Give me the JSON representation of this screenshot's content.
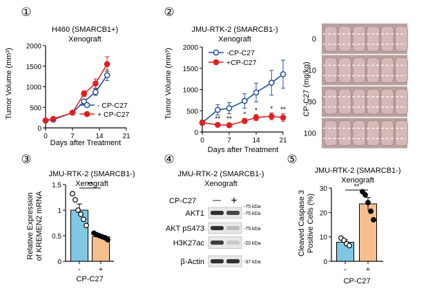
{
  "panel_numbers": [
    "①",
    "②",
    "③",
    "④",
    "⑤"
  ],
  "chart_data": [
    {
      "id": "panel1",
      "type": "line",
      "title": "H460 (SMARCB1+)",
      "subtitle": "Xenograft",
      "xlabel": "Days after Treatment",
      "ylabel": "Tumor Volume (mm³)",
      "xlim": [
        0,
        21
      ],
      "ylim": [
        0,
        2000
      ],
      "xticks": [
        0,
        7,
        14,
        21
      ],
      "yticks": [
        0,
        500,
        1000,
        1500,
        2000
      ],
      "x": [
        0,
        2,
        7,
        10,
        13,
        16
      ],
      "series": [
        {
          "name": "- CP-C27",
          "color": "#1f4e9e",
          "marker": "open-circle",
          "values": [
            180,
            200,
            370,
            640,
            870,
            1280
          ],
          "errors": [
            20,
            20,
            30,
            60,
            80,
            130
          ]
        },
        {
          "name": "+ CP-C27",
          "color": "#e02020",
          "marker": "filled-circle",
          "values": [
            180,
            220,
            370,
            830,
            1080,
            1550
          ],
          "errors": [
            20,
            20,
            30,
            70,
            110,
            180
          ]
        }
      ]
    },
    {
      "id": "panel2",
      "type": "line",
      "title": "JMU-RTK-2 (SMARCB1-)",
      "subtitle": "Xenograft",
      "xlabel": "Days after Treatment",
      "ylabel": "Tumor Volume (mm³)",
      "xlim": [
        0,
        21
      ],
      "ylim": [
        0,
        2000
      ],
      "xticks": [
        0,
        7,
        14,
        21
      ],
      "yticks": [
        0,
        500,
        1000,
        1500,
        2000
      ],
      "x": [
        0,
        4,
        7,
        11,
        14,
        18,
        21
      ],
      "series": [
        {
          "name": "-CP-C27",
          "color": "#1f4e9e",
          "marker": "open-circle",
          "values": [
            220,
            520,
            560,
            730,
            930,
            1160,
            1360
          ],
          "errors": [
            60,
            120,
            130,
            170,
            220,
            290,
            330
          ]
        },
        {
          "name": "+CP-C27",
          "color": "#e02020",
          "marker": "filled-circle",
          "values": [
            220,
            170,
            160,
            260,
            340,
            370,
            340
          ],
          "errors": [
            30,
            40,
            50,
            60,
            70,
            80,
            90
          ]
        }
      ],
      "significance": [
        {
          "x": 4,
          "label": "**"
        },
        {
          "x": 7,
          "label": "**"
        },
        {
          "x": 11,
          "label": "*"
        },
        {
          "x": 14,
          "label": "*"
        },
        {
          "x": 18,
          "label": "*"
        },
        {
          "x": 21,
          "label": "**"
        }
      ]
    },
    {
      "id": "panel3",
      "type": "bar",
      "title": "JMU-RTK-2 (SMARCB1-)",
      "subtitle": "Xenograft",
      "ylabel": "Relative Expression of KREMEN2 mRNA",
      "xlabel": "CP-C27",
      "categories": [
        "-",
        "+"
      ],
      "values": [
        1.0,
        0.48
      ],
      "errors": [
        0.12,
        0.04
      ],
      "colors": [
        "#7ec8e3",
        "#f6c08e"
      ],
      "points": [
        [
          1.32,
          1.2,
          1.0,
          0.92,
          0.82,
          0.7
        ],
        [
          0.55,
          0.52,
          0.5,
          0.48,
          0.46,
          0.42
        ]
      ],
      "ylim": [
        0,
        1.5
      ],
      "yticks": [
        0,
        0.5,
        1.0,
        1.5
      ],
      "significance": "**"
    },
    {
      "id": "panel5",
      "type": "bar",
      "title": "JMU-RTK-2 (SMARCB1-)",
      "subtitle": "Xenograft",
      "ylabel": "Cleaved Caspase 3 Positive Cells (%)",
      "xlabel": "CP-C27",
      "categories": [
        "-",
        "+"
      ],
      "values": [
        7.8,
        23.5
      ],
      "errors": [
        1.0,
        2.6
      ],
      "colors": [
        "#7ec8e3",
        "#f6c08e"
      ],
      "points": [
        [
          9.5,
          8.6,
          7.2,
          6.4
        ],
        [
          28.5,
          27.2,
          24.0,
          20.5,
          17.0
        ]
      ],
      "ylim": [
        0,
        30
      ],
      "yticks": [
        0,
        10,
        20,
        30
      ],
      "significance": "**"
    }
  ],
  "photos": {
    "ylabel": "CP-C27 (mg/kg)",
    "doses": [
      "0",
      "10",
      "30",
      "100"
    ]
  },
  "western": {
    "title": "JMU-RTK-2 (SMARCB1-)",
    "subtitle": "Xenograft",
    "treatment_label": "CP-C27",
    "minus": "—",
    "plus": "+",
    "rows": [
      {
        "label": "AKT1",
        "kda": "75 kDa",
        "ladder": "-75 kDa"
      },
      {
        "label": "AKT pS473",
        "kda": "75 kDa",
        "ladder": "-75 kDa"
      },
      {
        "label": "H3K27ac",
        "kda": "20 kDa",
        "ladder": "-20 kDa"
      },
      {
        "label": "β-Actin",
        "kda": "37 kDa",
        "ladder": "-37 kDa"
      }
    ],
    "top_ladder": "-75 kDa"
  }
}
